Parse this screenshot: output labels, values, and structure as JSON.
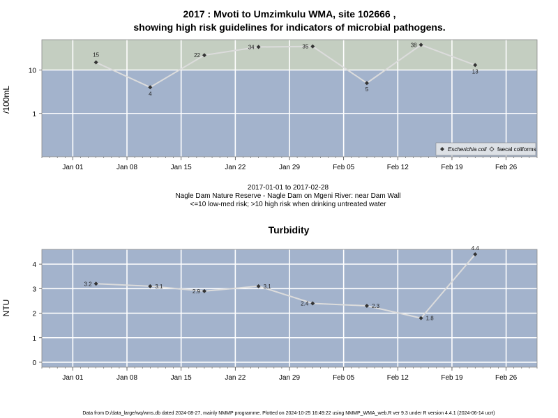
{
  "chart_data": [
    {
      "type": "line",
      "title": "2017 : Mvoti to Umzimkulu WMA, site 102666 ,",
      "subtitle": "showing high risk guidelines for indicators of microbial pathogens.",
      "xlabel": "",
      "ylabel": "/100mL",
      "yscale": "log",
      "ylim": [
        0.1,
        50
      ],
      "yticks": [
        1,
        10
      ],
      "xlim": [
        "2016-12-28",
        "2017-03-02"
      ],
      "xticks": [
        "2017-01-01",
        "2017-01-08",
        "2017-01-15",
        "2017-01-22",
        "2017-01-29",
        "2017-02-05",
        "2017-02-12",
        "2017-02-19",
        "2017-02-26"
      ],
      "xtick_labels": [
        "Jan 01",
        "Jan 08",
        "Jan 15",
        "Jan 22",
        "Jan 29",
        "Feb 05",
        "Feb 12",
        "Feb 19",
        "Feb 26"
      ],
      "x": [
        "2017-01-04",
        "2017-01-11",
        "2017-01-18",
        "2017-01-25",
        "2017-02-01",
        "2017-02-08",
        "2017-02-15",
        "2017-02-22"
      ],
      "series": [
        {
          "name": "Escherichia coli",
          "values": [
            15,
            4,
            22,
            34,
            35,
            5,
            38,
            13
          ]
        }
      ],
      "legend": [
        "Escherichia coli",
        "faecal coliforms"
      ],
      "legend_position": "bottom-right",
      "bands": [
        {
          "from": 10,
          "to": 50,
          "color": "#c4cec1"
        },
        {
          "from": 0.1,
          "to": 10,
          "color": "#a3b3cc"
        }
      ],
      "grid": true,
      "caption": [
        "2017-01-01 to 2017-02-28",
        "Nagle Dam Nature Reserve - Nagle Dam on Mgeni River: near Dam Wall",
        "<=10 low-med risk; >10 high risk when drinking untreated water"
      ]
    },
    {
      "type": "line",
      "title": "Turbidity",
      "xlabel": "",
      "ylabel": "NTU",
      "ylim": [
        -0.2,
        4.6
      ],
      "yticks": [
        0,
        1,
        2,
        3,
        4
      ],
      "xlim": [
        "2016-12-28",
        "2017-03-02"
      ],
      "xticks": [
        "2017-01-01",
        "2017-01-08",
        "2017-01-15",
        "2017-01-22",
        "2017-01-29",
        "2017-02-05",
        "2017-02-12",
        "2017-02-19",
        "2017-02-26"
      ],
      "xtick_labels": [
        "Jan 01",
        "Jan 08",
        "Jan 15",
        "Jan 22",
        "Jan 29",
        "Feb 05",
        "Feb 12",
        "Feb 19",
        "Feb 26"
      ],
      "x": [
        "2017-01-04",
        "2017-01-11",
        "2017-01-18",
        "2017-01-25",
        "2017-02-01",
        "2017-02-08",
        "2017-02-15",
        "2017-02-22"
      ],
      "series": [
        {
          "values": [
            3.2,
            3.1,
            2.9,
            3.1,
            2.4,
            2.3,
            1.8,
            4.4
          ]
        }
      ],
      "background": "#a3b3cc",
      "grid": true
    }
  ],
  "footer": "Data from D:/data_large/wq/wms.db dated 2024-08-27, mainly NMMP programme. Plotted on 2024-10-25 16:49:22 using NMMP_WMA_web.R ver 9.3 under R version 4.4.1 (2024-06-14 ucrt)",
  "colors": {
    "line": "#dcdcdc",
    "marker": "#333333",
    "grid": "#ffffff"
  }
}
